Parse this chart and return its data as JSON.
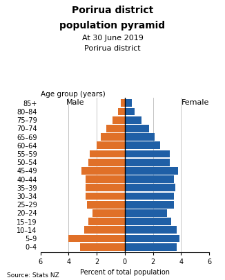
{
  "title_line1": "Porirua district",
  "title_line2": "population pyramid",
  "subtitle1": "At 30 June 2019",
  "subtitle2": "Porirua district",
  "age_groups": [
    "0–4",
    "5–9",
    "10–14",
    "15–19",
    "20–24",
    "25–29",
    "30–34",
    "35–39",
    "40–44",
    "45–49",
    "50–54",
    "55–59",
    "60–64",
    "65–69",
    "70–74",
    "75–79",
    "80–84",
    "85+"
  ],
  "male": [
    3.2,
    4.0,
    2.9,
    2.6,
    2.3,
    2.7,
    2.8,
    2.8,
    2.8,
    3.1,
    2.6,
    2.5,
    2.0,
    1.7,
    1.3,
    0.9,
    0.5,
    0.3
  ],
  "female": [
    3.7,
    3.9,
    3.7,
    3.3,
    3.0,
    3.5,
    3.5,
    3.6,
    3.5,
    3.8,
    3.2,
    3.2,
    2.5,
    2.1,
    1.7,
    1.2,
    0.7,
    0.5
  ],
  "male_color": "#E07028",
  "female_color": "#1F5FA6",
  "xlim": 6,
  "xlabel": "Percent of total population",
  "age_label": "Age group (years)",
  "male_label": "Male",
  "female_label": "Female",
  "source": "Source: Stats NZ",
  "grid_color": "#BBBBBB",
  "bar_gap": 0.12,
  "background_color": "#FFFFFF",
  "title_fontsize": 10,
  "subtitle_fontsize": 8,
  "tick_fontsize": 7,
  "label_fontsize": 7.5
}
